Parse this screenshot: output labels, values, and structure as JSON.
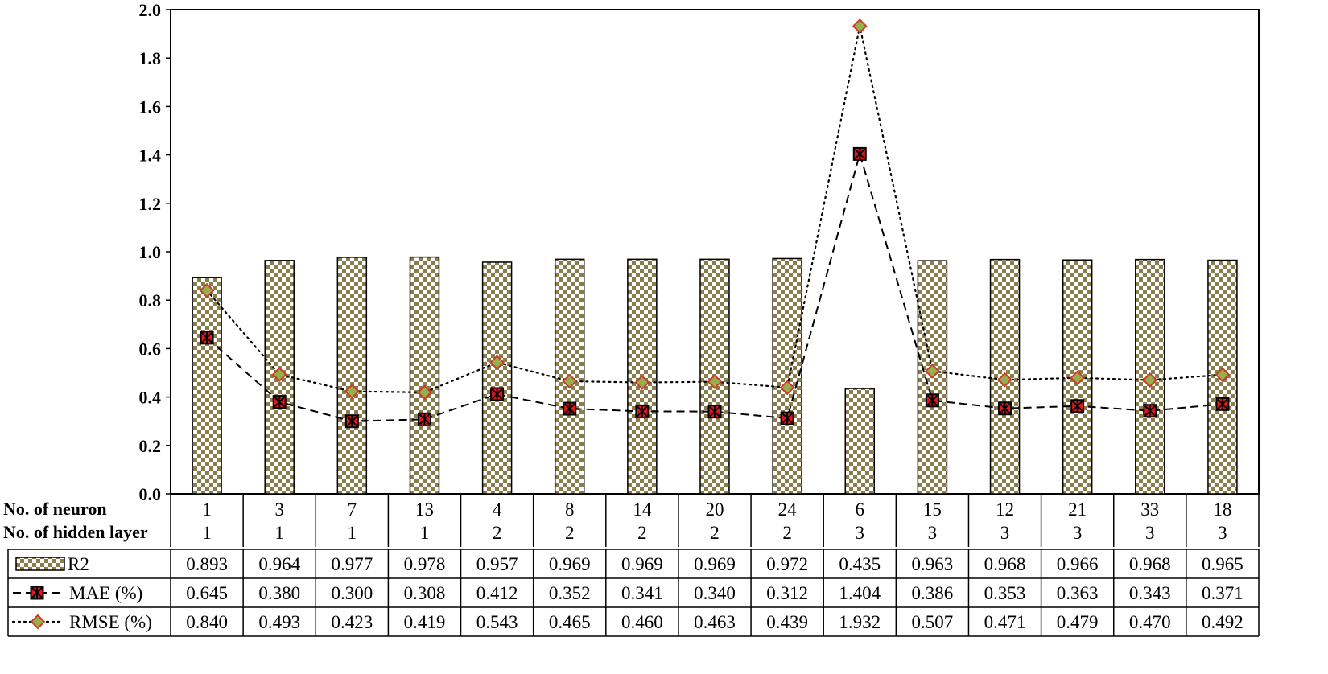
{
  "chart_data": {
    "type": "bar",
    "ylim": [
      0,
      2.0
    ],
    "y_ticks": [
      "0.0",
      "0.2",
      "0.4",
      "0.6",
      "0.8",
      "1.0",
      "1.2",
      "1.4",
      "1.6",
      "1.8",
      "2.0"
    ],
    "row_labels": {
      "neurons": "No. of neuron",
      "layers": "No. of hidden layer"
    },
    "neurons": [
      "1",
      "3",
      "7",
      "13",
      "4",
      "8",
      "14",
      "20",
      "24",
      "6",
      "15",
      "12",
      "21",
      "33",
      "18"
    ],
    "hidden_layers": [
      "1",
      "1",
      "1",
      "1",
      "2",
      "2",
      "2",
      "2",
      "2",
      "3",
      "3",
      "3",
      "3",
      "3",
      "3"
    ],
    "series": [
      {
        "name": "R2",
        "kind": "bar",
        "values": [
          0.893,
          0.964,
          0.977,
          0.978,
          0.957,
          0.969,
          0.969,
          0.969,
          0.972,
          0.435,
          0.963,
          0.968,
          0.966,
          0.968,
          0.965
        ],
        "labels": [
          "0.893",
          "0.964",
          "0.977",
          "0.978",
          "0.957",
          "0.969",
          "0.969",
          "0.969",
          "0.972",
          "0.435",
          "0.963",
          "0.968",
          "0.966",
          "0.968",
          "0.965"
        ]
      },
      {
        "name": "MAE (%)",
        "kind": "line-dashed",
        "values": [
          0.645,
          0.38,
          0.3,
          0.308,
          0.412,
          0.352,
          0.341,
          0.34,
          0.312,
          1.404,
          0.386,
          0.353,
          0.363,
          0.343,
          0.371
        ],
        "labels": [
          "0.645",
          "0.380",
          "0.300",
          "0.308",
          "0.412",
          "0.352",
          "0.341",
          "0.340",
          "0.312",
          "1.404",
          "0.386",
          "0.353",
          "0.363",
          "0.343",
          "0.371"
        ]
      },
      {
        "name": "RMSE (%)",
        "kind": "line-dotted",
        "values": [
          0.84,
          0.493,
          0.423,
          0.419,
          0.543,
          0.465,
          0.46,
          0.463,
          0.439,
          1.932,
          0.507,
          0.471,
          0.479,
          0.47,
          0.492
        ],
        "labels": [
          "0.840",
          "0.493",
          "0.423",
          "0.419",
          "0.543",
          "0.465",
          "0.460",
          "0.463",
          "0.439",
          "1.932",
          "0.507",
          "0.471",
          "0.479",
          "0.470",
          "0.492"
        ]
      }
    ],
    "colors": {
      "bar_check_dark": "#8a7d4c",
      "bar_check_light": "#ffffff",
      "mae_marker_fill": "#e8141c",
      "rmse_marker_fill": "#92b04c",
      "rmse_marker_stroke": "#d23a2a"
    }
  }
}
